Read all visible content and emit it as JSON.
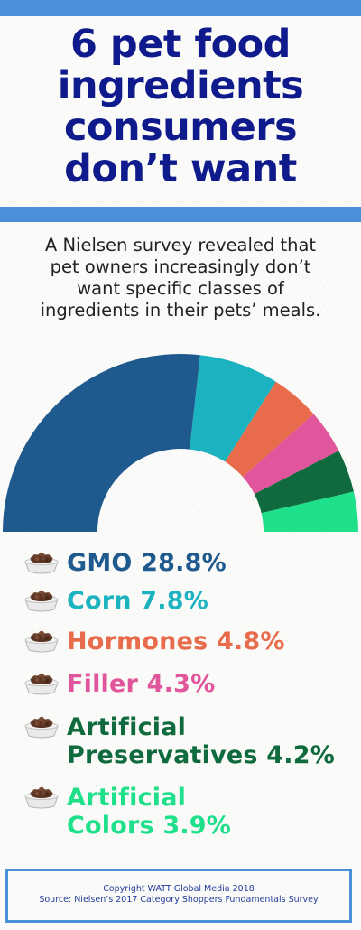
{
  "title": {
    "line1": "6 pet food",
    "line2": "ingredients",
    "line3": "consumers",
    "line4": "don’t want"
  },
  "intro": {
    "line1": "A Nielsen survey revealed that",
    "line2": "pet owners increasingly don’t",
    "line3": "want  specific classes of",
    "line4": "ingredients in their pets’ meals."
  },
  "legend": [
    "GMO 28.8%",
    "Corn 7.8%",
    "Hormones 4.8%",
    "Filler 4.3%",
    "Artificial Preservatives 4.2%",
    "Artificial Colors 3.9%"
  ],
  "legend_lines": {
    "4": [
      "Artificial",
      "Preservatives 4.2%"
    ],
    "5": [
      "Artificial",
      "Colors 3.9%"
    ]
  },
  "footer": {
    "copyright": "Copyright WATT Global Media 2018",
    "source": "Source:  Nielsen’s  2017 Category Shoppers Fundamentals Survey"
  },
  "chart_data": {
    "type": "pie",
    "style": "semi-donut",
    "categories": [
      "GMO",
      "Corn",
      "Hormones",
      "Filler",
      "Artificial Preservatives",
      "Artificial Colors"
    ],
    "values": [
      28.8,
      7.8,
      4.8,
      4.3,
      4.2,
      3.9
    ],
    "unit": "%",
    "colors": [
      "#1e5a8e",
      "#1bb3bf",
      "#e86b4c",
      "#e0559b",
      "#0f6b3d",
      "#1fe08a"
    ]
  }
}
